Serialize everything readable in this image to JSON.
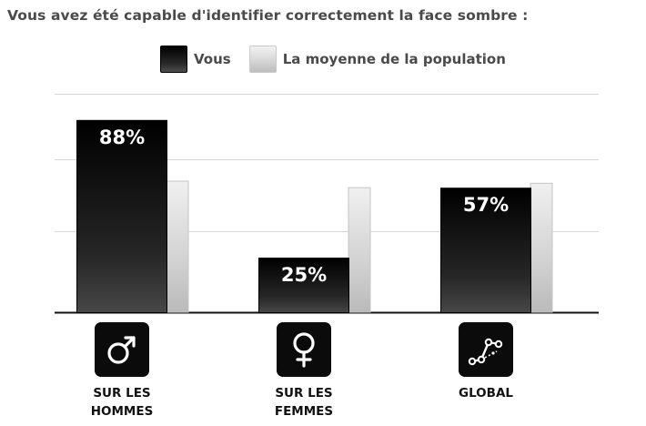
{
  "title": "Vous avez été capable d'identifier correctement la face sombre :",
  "legend": {
    "you": "Vous",
    "population": "La moyenne de la population"
  },
  "colors": {
    "you_bar": "#111111",
    "population_bar": "#d9d9d9",
    "icon_bg": "#0b0b0b"
  },
  "categories": [
    {
      "label": "SUR LES\nHOMMES",
      "icon": "male-symbol-icon"
    },
    {
      "label": "SUR LES\nFEMMES",
      "icon": "female-symbol-icon"
    },
    {
      "label": "GLOBAL",
      "icon": "scatter-graph-icon"
    }
  ],
  "chart_data": {
    "type": "bar",
    "categories": [
      "SUR LES HOMMES",
      "SUR LES FEMMES",
      "GLOBAL"
    ],
    "series": [
      {
        "name": "Vous",
        "values": [
          88,
          25,
          57
        ]
      },
      {
        "name": "La moyenne de la population",
        "values": [
          60,
          57,
          59
        ]
      }
    ],
    "data_labels": [
      "88%",
      "25%",
      "57%"
    ],
    "ylim": [
      0,
      100
    ],
    "grid": true,
    "legend_position": "top"
  }
}
